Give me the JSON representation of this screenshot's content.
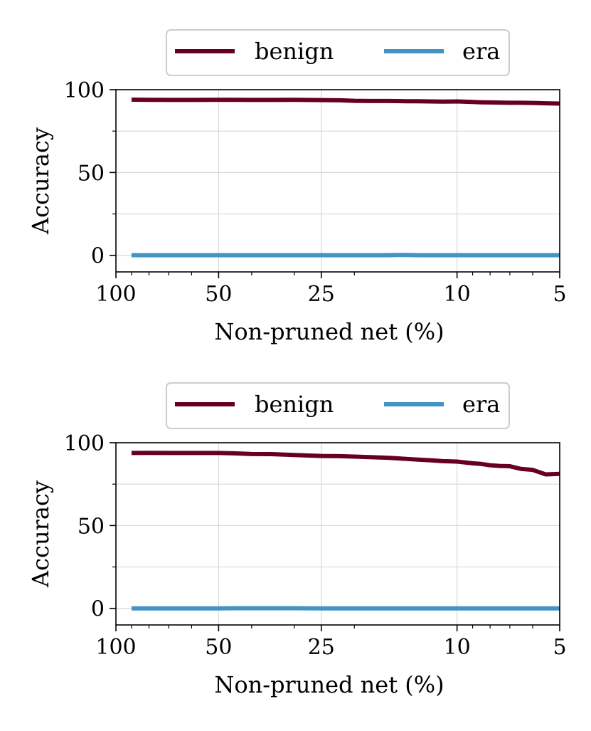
{
  "colors": {
    "benign": "#67001f",
    "era": "#4393c3",
    "grid": "#d9d9d9",
    "legend_border": "#cccccc"
  },
  "chart_data": [
    {
      "type": "line",
      "xlabel": "Non-pruned net (%)",
      "ylabel": "Accuracy",
      "x_scale": "log",
      "x_reversed": true,
      "xlim": [
        100,
        5
      ],
      "ylim": [
        -10,
        100
      ],
      "x_ticks": [
        100,
        50,
        25,
        10,
        5
      ],
      "x_tick_labels": [
        "100",
        "50",
        "25",
        "10",
        "5"
      ],
      "y_ticks": [
        0,
        50,
        100
      ],
      "y_tick_labels": [
        "0",
        "50",
        "100"
      ],
      "grid": true,
      "legend_position": "top-center",
      "x": [
        90,
        80,
        70,
        60,
        50,
        45,
        40,
        35,
        30,
        25,
        22,
        20,
        18,
        16,
        15,
        14,
        13,
        12,
        11,
        10,
        9,
        8.5,
        8,
        7.5,
        7,
        6.5,
        6,
        5.5,
        5
      ],
      "series": [
        {
          "name": "benign",
          "color": "#67001f",
          "values": [
            94.0,
            93.9,
            93.8,
            93.8,
            93.9,
            93.9,
            93.8,
            93.8,
            93.9,
            93.7,
            93.6,
            93.3,
            93.2,
            93.2,
            93.1,
            93.0,
            93.0,
            92.9,
            92.8,
            92.9,
            92.6,
            92.4,
            92.3,
            92.2,
            92.1,
            92.1,
            92.0,
            91.8,
            91.6
          ]
        },
        {
          "name": "era",
          "color": "#4393c3",
          "values": [
            0.1,
            0.1,
            0.1,
            0.1,
            0.1,
            0.1,
            0.1,
            0.1,
            0.1,
            0.1,
            0.1,
            0.1,
            0.1,
            0.1,
            0.2,
            0.2,
            0.1,
            0.1,
            0.1,
            0.1,
            0.1,
            0.1,
            0.1,
            0.1,
            0.1,
            0.1,
            0.1,
            0.1,
            0.1
          ]
        }
      ]
    },
    {
      "type": "line",
      "xlabel": "Non-pruned net (%)",
      "ylabel": "Accuracy",
      "x_scale": "log",
      "x_reversed": true,
      "xlim": [
        100,
        5
      ],
      "ylim": [
        -10,
        100
      ],
      "x_ticks": [
        100,
        50,
        25,
        10,
        5
      ],
      "x_tick_labels": [
        "100",
        "50",
        "25",
        "10",
        "5"
      ],
      "y_ticks": [
        0,
        50,
        100
      ],
      "y_tick_labels": [
        "0",
        "50",
        "100"
      ],
      "grid": true,
      "legend_position": "top-center",
      "x": [
        90,
        80,
        70,
        60,
        50,
        45,
        40,
        35,
        30,
        25,
        22,
        20,
        18,
        16,
        15,
        14,
        13,
        12,
        11,
        10,
        9,
        8.5,
        8,
        7.5,
        7,
        6.5,
        6,
        5.5,
        5
      ],
      "series": [
        {
          "name": "benign",
          "color": "#67001f",
          "values": [
            93.8,
            93.9,
            93.8,
            93.8,
            93.8,
            93.6,
            93.2,
            93.1,
            92.6,
            92.0,
            91.9,
            91.6,
            91.3,
            90.9,
            90.6,
            90.2,
            89.8,
            89.4,
            88.9,
            88.6,
            87.6,
            87.2,
            86.4,
            86.0,
            85.8,
            84.2,
            83.6,
            80.9,
            81.2
          ]
        },
        {
          "name": "era",
          "color": "#4393c3",
          "values": [
            0.0,
            0.0,
            0.0,
            0.0,
            0.0,
            0.1,
            0.1,
            0.1,
            0.1,
            0.0,
            0.0,
            0.0,
            0.0,
            0.0,
            0.0,
            0.0,
            0.0,
            0.0,
            0.0,
            0.0,
            0.0,
            0.0,
            0.0,
            0.0,
            0.0,
            0.0,
            0.0,
            0.0,
            0.0
          ]
        }
      ]
    }
  ]
}
